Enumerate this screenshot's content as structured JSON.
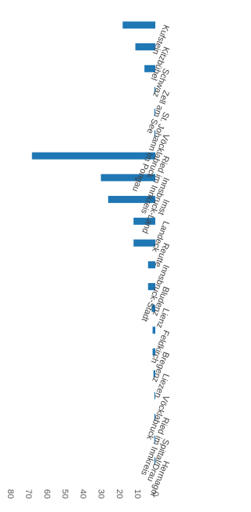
{
  "chart_data": {
    "type": "bar",
    "orientation": "vertical",
    "rotation": 90,
    "categories": [
      "Hermagor",
      "Spittal/Drau",
      "Ried im Innkreis",
      "Vöcklabruck",
      "Liezen",
      "Bregenz",
      "Feldkirch",
      "Lienz",
      "Bludenz",
      "Innsbruck-Stadt",
      "Reutte",
      "Landeck",
      "Imst",
      "Innsbruck-Land",
      "Ried im Innkreis",
      "Vöcklabruck",
      "St. Johann im Pongau",
      "Zell am See",
      "Schwaz",
      "Kitzbühel",
      "Kufstein"
    ],
    "values": [
      0.5,
      0.5,
      0.5,
      0.5,
      1,
      1.5,
      1.5,
      2,
      4,
      4,
      12,
      12,
      26,
      30,
      68,
      0.5,
      0.5,
      0.5,
      6,
      11,
      18
    ],
    "yticks": [
      0,
      10,
      20,
      30,
      40,
      50,
      60,
      70,
      80
    ],
    "ylim": [
      0,
      80
    ],
    "grid": false,
    "bar_color": "#1f77b4",
    "title": "",
    "xlabel": "",
    "ylabel": ""
  }
}
